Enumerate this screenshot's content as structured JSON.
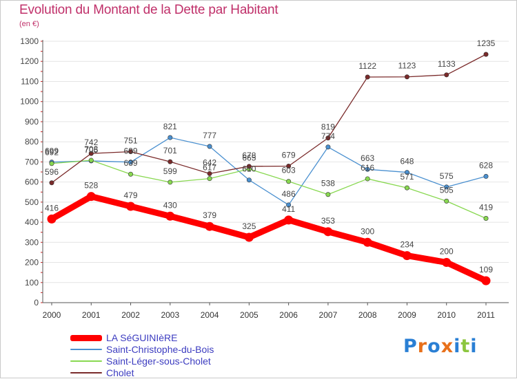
{
  "title": "Evolution du Montant de la Dette par Habitant",
  "subtitle": "(en €)",
  "brand": "Proxiti",
  "brand_colors": [
    "#2a7fd4",
    "#e8701a",
    "#2a7fd4",
    "#e8701a",
    "#2a7fd4",
    "#8cc63f",
    "#2a7fd4"
  ],
  "chart_data": {
    "type": "line",
    "x": [
      "2000",
      "2001",
      "2002",
      "2003",
      "2004",
      "2005",
      "2006",
      "2007",
      "2008",
      "2009",
      "2010",
      "2011"
    ],
    "ylim": [
      0,
      1300
    ],
    "yticks": [
      0,
      100,
      200,
      300,
      400,
      500,
      600,
      700,
      800,
      900,
      1000,
      1100,
      1200,
      1300
    ],
    "grid": true,
    "legend_position": "bottom-left",
    "series": [
      {
        "name": "LA SéGUINIèRE",
        "color": "#ff0000",
        "values": [
          416,
          528,
          479,
          430,
          379,
          325,
          411,
          353,
          300,
          234,
          200,
          109
        ]
      },
      {
        "name": "Saint-Christophe-du-Bois",
        "color": "#4a90d0",
        "values": [
          699,
          705,
          699,
          821,
          777,
          610,
          486,
          774,
          663,
          648,
          575,
          628
        ]
      },
      {
        "name": "Saint-Léger-sous-Cholet",
        "color": "#88d850",
        "values": [
          692,
          708,
          639,
          599,
          617,
          665,
          603,
          538,
          616,
          571,
          505,
          419
        ]
      },
      {
        "name": "Cholet",
        "color": "#7a2a2a",
        "values": [
          596,
          742,
          751,
          701,
          642,
          678,
          679,
          819,
          1122,
          1123,
          1133,
          1235
        ]
      }
    ]
  }
}
